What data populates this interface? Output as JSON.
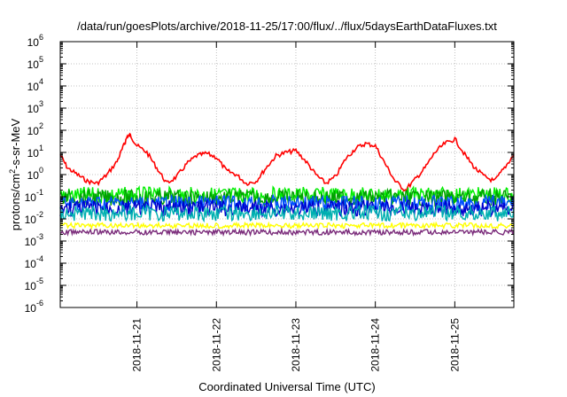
{
  "chart_data": {
    "type": "line",
    "title": "/data/run/goesPlots/archive/2018-11-25/17:00/flux/../flux/5daysEarthDataFluxes.txt",
    "xlabel": "Coordinated Universal Time (UTC)",
    "ylabel": "protons/cm²-s-sr-MeV",
    "ylabel_parts": {
      "pre": "protons/cm",
      "sup": "2",
      "post": "-s-sr-MeV"
    },
    "y_scale": "log",
    "ylim": [
      1e-06,
      1000000.0
    ],
    "y_tick_exponents": [
      -6,
      -5,
      -4,
      -3,
      -2,
      -1,
      0,
      1,
      2,
      3,
      4,
      5,
      6
    ],
    "y_tick_base": "10",
    "xlim": [
      "2018-11-20T00:50",
      "2018-11-25T17:50"
    ],
    "x_ticks": [
      "2018-11-21",
      "2018-11-22",
      "2018-11-23",
      "2018-11-24",
      "2018-11-25"
    ],
    "grid": true,
    "legend": "none",
    "series": [
      {
        "color": "#ff0000",
        "x": [
          "2018-11-20T00:50",
          "2018-11-20T03:00",
          "2018-11-20T06:00",
          "2018-11-20T09:00",
          "2018-11-20T12:00",
          "2018-11-20T15:00",
          "2018-11-20T18:00",
          "2018-11-20T20:00",
          "2018-11-20T21:00",
          "2018-11-20T22:00",
          "2018-11-21T00:00",
          "2018-11-21T03:00",
          "2018-11-21T06:00",
          "2018-11-21T09:00",
          "2018-11-21T12:00",
          "2018-11-21T15:00",
          "2018-11-21T18:00",
          "2018-11-21T21:00",
          "2018-11-22T00:00",
          "2018-11-22T03:00",
          "2018-11-22T06:00",
          "2018-11-22T09:00",
          "2018-11-22T12:00",
          "2018-11-22T15:00",
          "2018-11-22T18:00",
          "2018-11-22T21:00",
          "2018-11-23T00:00",
          "2018-11-23T03:00",
          "2018-11-23T06:00",
          "2018-11-23T09:00",
          "2018-11-23T12:00",
          "2018-11-23T15:00",
          "2018-11-23T18:00",
          "2018-11-23T21:00",
          "2018-11-24T00:00",
          "2018-11-24T03:00",
          "2018-11-24T06:00",
          "2018-11-24T09:00",
          "2018-11-24T12:00",
          "2018-11-24T15:00",
          "2018-11-24T18:00",
          "2018-11-24T21:00",
          "2018-11-25T00:00",
          "2018-11-25T03:00",
          "2018-11-25T06:00",
          "2018-11-25T09:00",
          "2018-11-25T12:00",
          "2018-11-25T15:00",
          "2018-11-25T17:50"
        ],
        "values": [
          8,
          2,
          1,
          0.5,
          0.4,
          1,
          4,
          20,
          50,
          60,
          20,
          10,
          2,
          0.4,
          0.8,
          3,
          7,
          9,
          6,
          1.5,
          1,
          0.4,
          0.5,
          2,
          7,
          10,
          12,
          4,
          1,
          0.4,
          0.8,
          5,
          15,
          25,
          20,
          3,
          0.5,
          0.2,
          0.6,
          2,
          10,
          25,
          40,
          8,
          2,
          0.8,
          0.5,
          2,
          8
        ]
      },
      {
        "color": "#00ee00",
        "level": 0.12
      },
      {
        "color": "#00a000",
        "level": 0.09
      },
      {
        "color": "#0050ff",
        "level": 0.05
      },
      {
        "color": "#0000cc",
        "level": 0.03
      },
      {
        "color": "#00b0b0",
        "level": 0.018
      },
      {
        "color": "#ffff00",
        "level": 0.005
      },
      {
        "color": "#7b2c7b",
        "level": 0.0025
      }
    ]
  }
}
